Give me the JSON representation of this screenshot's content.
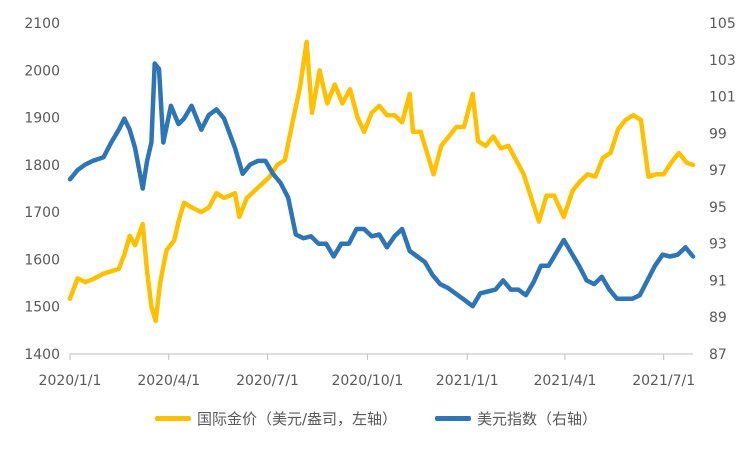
{
  "chart_data": {
    "type": "line",
    "title": "",
    "xlabel": "",
    "ylabel_left": "",
    "ylabel_right": "",
    "x_tick_labels": [
      "2020/1/1",
      "2020/4/1",
      "2020/7/1",
      "2020/10/1",
      "2021/1/1",
      "2021/4/1",
      "2021/7/1"
    ],
    "left_axis": {
      "ylim": [
        1400,
        2100
      ],
      "ticks": [
        1400,
        1500,
        1600,
        1700,
        1800,
        1900,
        2000,
        2100
      ]
    },
    "right_axis": {
      "ylim": [
        87,
        105
      ],
      "ticks": [
        87,
        89,
        91,
        93,
        95,
        97,
        99,
        101,
        103,
        105
      ]
    },
    "grid": false,
    "legend_position": "bottom",
    "series": [
      {
        "name": "国际金价（美元/盎司，左轴）",
        "axis": "left",
        "color": "#FFC000",
        "points": [
          [
            "2020/1/1",
            1517
          ],
          [
            "2020/1/8",
            1560
          ],
          [
            "2020/1/15",
            1552
          ],
          [
            "2020/1/22",
            1558
          ],
          [
            "2020/2/1",
            1570
          ],
          [
            "2020/2/8",
            1575
          ],
          [
            "2020/2/15",
            1580
          ],
          [
            "2020/2/20",
            1610
          ],
          [
            "2020/2/25",
            1650
          ],
          [
            "2020/3/1",
            1630
          ],
          [
            "2020/3/8",
            1675
          ],
          [
            "2020/3/12",
            1575
          ],
          [
            "2020/3/16",
            1500
          ],
          [
            "2020/3/20",
            1470
          ],
          [
            "2020/3/24",
            1550
          ],
          [
            "2020/3/30",
            1620
          ],
          [
            "2020/4/6",
            1640
          ],
          [
            "2020/4/10",
            1680
          ],
          [
            "2020/4/15",
            1720
          ],
          [
            "2020/4/22",
            1710
          ],
          [
            "2020/5/1",
            1700
          ],
          [
            "2020/5/8",
            1710
          ],
          [
            "2020/5/15",
            1740
          ],
          [
            "2020/5/22",
            1730
          ],
          [
            "2020/6/1",
            1740
          ],
          [
            "2020/6/5",
            1690
          ],
          [
            "2020/6/12",
            1730
          ],
          [
            "2020/6/19",
            1745
          ],
          [
            "2020/6/26",
            1760
          ],
          [
            "2020/7/3",
            1775
          ],
          [
            "2020/7/10",
            1800
          ],
          [
            "2020/7/17",
            1810
          ],
          [
            "2020/7/24",
            1890
          ],
          [
            "2020/7/31",
            1965
          ],
          [
            "2020/8/6",
            2060
          ],
          [
            "2020/8/11",
            1910
          ],
          [
            "2020/8/18",
            2000
          ],
          [
            "2020/8/25",
            1930
          ],
          [
            "2020/9/1",
            1970
          ],
          [
            "2020/9/8",
            1930
          ],
          [
            "2020/9/15",
            1960
          ],
          [
            "2020/9/22",
            1900
          ],
          [
            "2020/9/28",
            1870
          ],
          [
            "2020/10/5",
            1910
          ],
          [
            "2020/10/12",
            1925
          ],
          [
            "2020/10/19",
            1905
          ],
          [
            "2020/10/26",
            1905
          ],
          [
            "2020/11/2",
            1890
          ],
          [
            "2020/11/9",
            1950
          ],
          [
            "2020/11/12",
            1870
          ],
          [
            "2020/11/19",
            1870
          ],
          [
            "2020/11/27",
            1810
          ],
          [
            "2020/12/1",
            1780
          ],
          [
            "2020/12/8",
            1840
          ],
          [
            "2020/12/15",
            1860
          ],
          [
            "2020/12/22",
            1880
          ],
          [
            "2020/12/29",
            1880
          ],
          [
            "2021/1/6",
            1950
          ],
          [
            "2021/1/11",
            1850
          ],
          [
            "2021/1/18",
            1840
          ],
          [
            "2021/1/25",
            1860
          ],
          [
            "2021/2/1",
            1835
          ],
          [
            "2021/2/8",
            1840
          ],
          [
            "2021/2/15",
            1810
          ],
          [
            "2021/2/22",
            1780
          ],
          [
            "2021/3/1",
            1730
          ],
          [
            "2021/3/8",
            1680
          ],
          [
            "2021/3/15",
            1735
          ],
          [
            "2021/3/22",
            1735
          ],
          [
            "2021/3/31",
            1690
          ],
          [
            "2021/4/8",
            1745
          ],
          [
            "2021/4/15",
            1765
          ],
          [
            "2021/4/22",
            1780
          ],
          [
            "2021/4/29",
            1775
          ],
          [
            "2021/5/6",
            1815
          ],
          [
            "2021/5/13",
            1825
          ],
          [
            "2021/5/20",
            1875
          ],
          [
            "2021/5/27",
            1895
          ],
          [
            "2021/6/3",
            1905
          ],
          [
            "2021/6/10",
            1895
          ],
          [
            "2021/6/17",
            1775
          ],
          [
            "2021/6/24",
            1780
          ],
          [
            "2021/7/1",
            1780
          ],
          [
            "2021/7/8",
            1805
          ],
          [
            "2021/7/15",
            1825
          ],
          [
            "2021/7/22",
            1805
          ],
          [
            "2021/7/28",
            1800
          ]
        ]
      },
      {
        "name": "美元指数（右轴）",
        "axis": "right",
        "color": "#2E75B6",
        "points": [
          [
            "2020/1/1",
            96.5
          ],
          [
            "2020/1/8",
            97.0
          ],
          [
            "2020/1/15",
            97.3
          ],
          [
            "2020/1/22",
            97.5
          ],
          [
            "2020/2/1",
            97.7
          ],
          [
            "2020/2/8",
            98.5
          ],
          [
            "2020/2/15",
            99.2
          ],
          [
            "2020/2/20",
            99.8
          ],
          [
            "2020/2/25",
            99.2
          ],
          [
            "2020/3/1",
            98.2
          ],
          [
            "2020/3/8",
            96.0
          ],
          [
            "2020/3/12",
            97.5
          ],
          [
            "2020/3/16",
            98.5
          ],
          [
            "2020/3/19",
            102.8
          ],
          [
            "2020/3/23",
            102.5
          ],
          [
            "2020/3/27",
            98.5
          ],
          [
            "2020/4/3",
            100.5
          ],
          [
            "2020/4/10",
            99.5
          ],
          [
            "2020/4/15",
            99.8
          ],
          [
            "2020/4/22",
            100.5
          ],
          [
            "2020/5/1",
            99.2
          ],
          [
            "2020/5/8",
            100.0
          ],
          [
            "2020/5/15",
            100.3
          ],
          [
            "2020/5/22",
            99.8
          ],
          [
            "2020/6/1",
            98.2
          ],
          [
            "2020/6/8",
            96.8
          ],
          [
            "2020/6/15",
            97.3
          ],
          [
            "2020/6/22",
            97.5
          ],
          [
            "2020/6/29",
            97.5
          ],
          [
            "2020/7/6",
            96.8
          ],
          [
            "2020/7/13",
            96.3
          ],
          [
            "2020/7/20",
            95.5
          ],
          [
            "2020/7/27",
            93.5
          ],
          [
            "2020/8/3",
            93.3
          ],
          [
            "2020/8/10",
            93.4
          ],
          [
            "2020/8/17",
            93.0
          ],
          [
            "2020/8/24",
            93.0
          ],
          [
            "2020/8/31",
            92.3
          ],
          [
            "2020/9/7",
            93.0
          ],
          [
            "2020/9/14",
            93.0
          ],
          [
            "2020/9/21",
            93.8
          ],
          [
            "2020/9/28",
            93.8
          ],
          [
            "2020/10/5",
            93.4
          ],
          [
            "2020/10/12",
            93.5
          ],
          [
            "2020/10/19",
            92.8
          ],
          [
            "2020/10/26",
            93.4
          ],
          [
            "2020/11/2",
            93.8
          ],
          [
            "2020/11/9",
            92.6
          ],
          [
            "2020/11/16",
            92.3
          ],
          [
            "2020/11/23",
            92.0
          ],
          [
            "2020/11/30",
            91.3
          ],
          [
            "2020/12/7",
            90.8
          ],
          [
            "2020/12/14",
            90.6
          ],
          [
            "2020/12/21",
            90.3
          ],
          [
            "2020/12/28",
            90.0
          ],
          [
            "2021/1/6",
            89.6
          ],
          [
            "2021/1/13",
            90.3
          ],
          [
            "2021/1/20",
            90.4
          ],
          [
            "2021/1/27",
            90.5
          ],
          [
            "2021/2/3",
            91.0
          ],
          [
            "2021/2/10",
            90.5
          ],
          [
            "2021/2/17",
            90.5
          ],
          [
            "2021/2/24",
            90.2
          ],
          [
            "2021/3/3",
            90.9
          ],
          [
            "2021/3/10",
            91.8
          ],
          [
            "2021/3/17",
            91.8
          ],
          [
            "2021/3/24",
            92.5
          ],
          [
            "2021/3/31",
            93.2
          ],
          [
            "2021/4/7",
            92.5
          ],
          [
            "2021/4/14",
            91.8
          ],
          [
            "2021/4/21",
            91.0
          ],
          [
            "2021/4/28",
            90.8
          ],
          [
            "2021/5/5",
            91.2
          ],
          [
            "2021/5/12",
            90.5
          ],
          [
            "2021/5/19",
            90.0
          ],
          [
            "2021/5/26",
            90.0
          ],
          [
            "2021/6/2",
            90.0
          ],
          [
            "2021/6/9",
            90.2
          ],
          [
            "2021/6/16",
            91.0
          ],
          [
            "2021/6/23",
            91.8
          ],
          [
            "2021/6/30",
            92.4
          ],
          [
            "2021/7/7",
            92.3
          ],
          [
            "2021/7/14",
            92.4
          ],
          [
            "2021/7/21",
            92.8
          ],
          [
            "2021/7/28",
            92.3
          ]
        ]
      }
    ]
  }
}
